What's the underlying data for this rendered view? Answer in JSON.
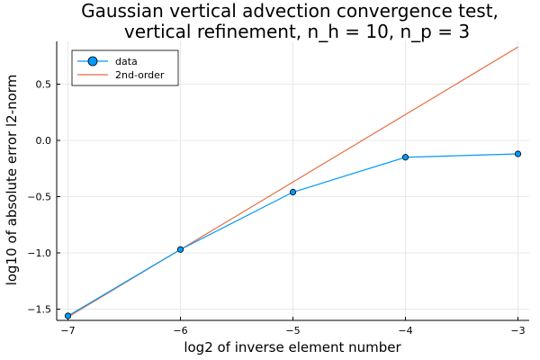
{
  "chart_data": {
    "type": "line",
    "title": [
      "Gaussian vertical advection convergence test,",
      "vertical refinement, n_h = 10, n_p = 3"
    ],
    "xlabel": "log2 of inverse element number",
    "ylabel": "log10 of absolute error l2-norm",
    "xlim": [
      -7.1,
      -2.9
    ],
    "ylim": [
      -1.6,
      0.88
    ],
    "xticks": [
      -7,
      -6,
      -5,
      -4,
      -3
    ],
    "yticks": [
      -1.5,
      -1.0,
      -0.5,
      0.0,
      0.5
    ],
    "xtick_labels": [
      "−7",
      "−6",
      "−5",
      "−4",
      "−3"
    ],
    "ytick_labels": [
      "−1.5",
      "−1.0",
      "−0.5",
      "0.0",
      "0.5"
    ],
    "grid": true,
    "legend_position": "top-left",
    "series": [
      {
        "name": "data",
        "style": "line+markers",
        "color": "#009AFA",
        "x": [
          -7,
          -6,
          -5,
          -4,
          -3
        ],
        "y": [
          -1.56,
          -0.97,
          -0.46,
          -0.15,
          -0.12
        ]
      },
      {
        "name": "2nd-order",
        "style": "line",
        "color": "#E26F46",
        "x": [
          -7,
          -3
        ],
        "y": [
          -1.57,
          0.83
        ]
      }
    ]
  }
}
